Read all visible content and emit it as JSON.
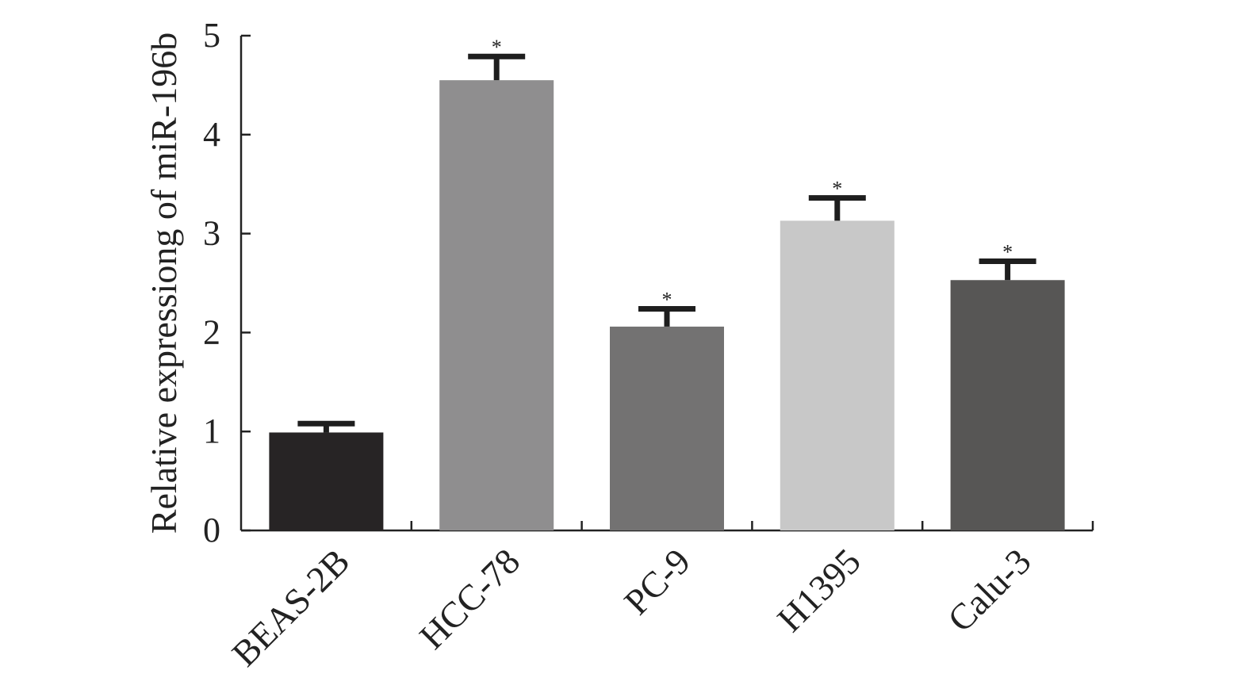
{
  "chart_data": {
    "type": "bar",
    "title": "",
    "xlabel": "",
    "ylabel": "Relative expressiong of miR-196b",
    "ylim": [
      0,
      5
    ],
    "yticks": [
      "0",
      "1",
      "2",
      "3",
      "4",
      "5"
    ],
    "categories": [
      "BEAS-2B",
      "HCC-78",
      "PC-9",
      "H1395",
      "Calu-3"
    ],
    "values": [
      0.99,
      4.55,
      2.06,
      3.13,
      2.53
    ],
    "error_upper": [
      0.09,
      0.24,
      0.18,
      0.23,
      0.19
    ],
    "annotations": [
      "",
      "*",
      "*",
      "*",
      "*"
    ],
    "bar_colors": [
      "#272425",
      "#8f8e8f",
      "#737272",
      "#c8c8c8",
      "#575655"
    ],
    "grid": false,
    "legend": "none"
  }
}
